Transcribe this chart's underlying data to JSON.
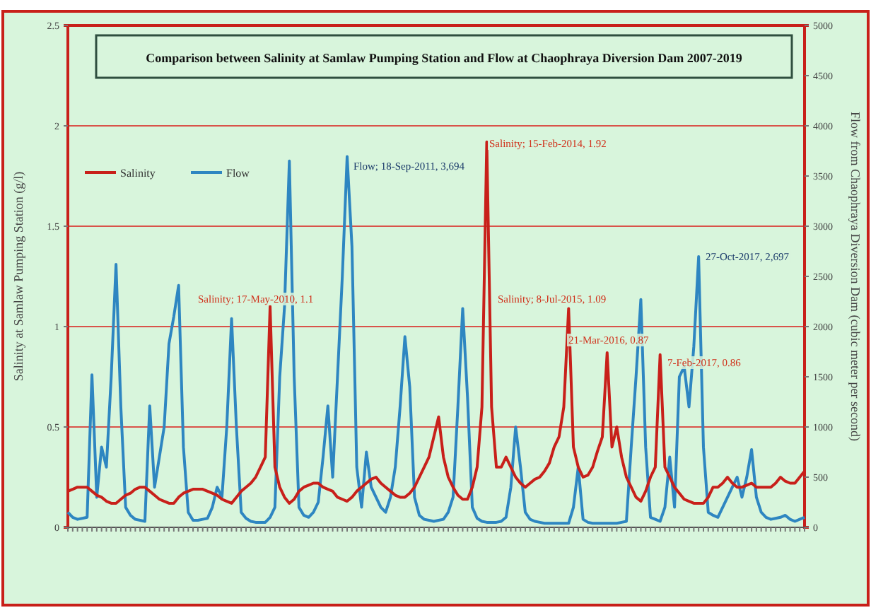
{
  "chart_data": {
    "type": "line",
    "title": "Comparison between Salinity at Samlaw Pumping Station and Flow at Chaophraya Diversion Dam 2007-2019",
    "ylabel": "Salinity at Samlaw Pumping Station (g/l)",
    "y2label": "Flow from Chaophraya Diversion Dam (cubic meter per second)",
    "categories": [
      null,
      null,
      null,
      null,
      null,
      null,
      null,
      null,
      null,
      null,
      null,
      null,
      null,
      null,
      null,
      null,
      null,
      null,
      null,
      null,
      null,
      null,
      null,
      null,
      null,
      null,
      null,
      null,
      null,
      null,
      null,
      null,
      null,
      null,
      null,
      null,
      null,
      null,
      null,
      null,
      null,
      null,
      null,
      null,
      null,
      null,
      null,
      null,
      null,
      null,
      null,
      null,
      null,
      null,
      null,
      null,
      null,
      null,
      null,
      null,
      null,
      null,
      null,
      null,
      null,
      null,
      null,
      null,
      null,
      null,
      null,
      null,
      null,
      null,
      null,
      null,
      null,
      null,
      null,
      null,
      null,
      null,
      null,
      null,
      null,
      null,
      null,
      null,
      null,
      null,
      null,
      null,
      null,
      null,
      null,
      null,
      null,
      null,
      null,
      null,
      null,
      null,
      null,
      null,
      null,
      null,
      null,
      null,
      null,
      null,
      null,
      null,
      null,
      null,
      null,
      null,
      null,
      null,
      null,
      null,
      null,
      null,
      null,
      null,
      null,
      null,
      null,
      null,
      null,
      null,
      null,
      null,
      null,
      null,
      null,
      null,
      null,
      null,
      null,
      null,
      null,
      null,
      null,
      null,
      null,
      null,
      null,
      null,
      null,
      null,
      null,
      null,
      null,
      null
    ],
    "ylim": [
      0,
      2.5
    ],
    "yticks": [
      0,
      0.5,
      1,
      1.5,
      2,
      2.5
    ],
    "y2lim": [
      0,
      5000
    ],
    "y2ticks": [
      0,
      500,
      1000,
      1500,
      2000,
      2500,
      3000,
      3500,
      4000,
      4500,
      5000
    ],
    "tick_labels": "y",
    "grid": "y",
    "legend": "top left",
    "series": [
      {
        "name": "Salinity",
        "color": "#c8201a",
        "values": [
          0.18,
          0.19,
          0.2,
          0.2,
          0.2,
          0.18,
          0.16,
          0.15,
          0.13,
          0.12,
          0.12,
          0.14,
          0.16,
          0.17,
          0.19,
          0.2,
          0.2,
          0.18,
          0.16,
          0.14,
          0.13,
          0.12,
          0.12,
          0.15,
          0.17,
          0.18,
          0.19,
          0.19,
          0.19,
          0.18,
          0.17,
          0.16,
          0.14,
          0.13,
          0.12,
          0.15,
          0.18,
          0.2,
          0.22,
          0.25,
          0.3,
          0.35,
          1.1,
          0.3,
          0.2,
          0.15,
          0.12,
          0.14,
          0.18,
          0.2,
          0.21,
          0.22,
          0.22,
          0.2,
          0.19,
          0.18,
          0.15,
          0.14,
          0.13,
          0.15,
          0.18,
          0.2,
          0.22,
          0.24,
          0.25,
          0.22,
          0.2,
          0.18,
          0.16,
          0.15,
          0.15,
          0.17,
          0.2,
          0.25,
          0.3,
          0.35,
          0.45,
          0.55,
          0.35,
          0.25,
          0.2,
          0.16,
          0.14,
          0.14,
          0.2,
          0.3,
          0.6,
          1.92,
          0.6,
          0.3,
          0.3,
          0.35,
          0.3,
          0.25,
          0.22,
          0.2,
          0.22,
          0.24,
          0.25,
          0.28,
          0.32,
          0.4,
          0.45,
          0.6,
          1.09,
          0.4,
          0.3,
          0.25,
          0.26,
          0.3,
          0.38,
          0.45,
          0.87,
          0.4,
          0.5,
          0.35,
          0.25,
          0.2,
          0.15,
          0.13,
          0.18,
          0.25,
          0.3,
          0.86,
          0.3,
          0.25,
          0.2,
          0.17,
          0.14,
          0.13,
          0.12,
          0.12,
          0.12,
          0.15,
          0.2,
          0.2,
          0.22,
          0.25,
          0.22,
          0.2,
          0.2,
          0.21,
          0.22,
          0.2,
          0.2,
          0.2,
          0.2,
          0.22,
          0.25,
          0.23,
          0.22,
          0.22,
          0.25,
          0.28
        ]
      },
      {
        "name": "Flow",
        "color": "#2e86c1",
        "axis": "y2",
        "values": [
          150,
          100,
          80,
          90,
          100,
          1520,
          300,
          800,
          600,
          1500,
          2620,
          1200,
          200,
          120,
          80,
          70,
          60,
          1210,
          400,
          700,
          1000,
          1830,
          2100,
          2410,
          800,
          150,
          70,
          70,
          80,
          90,
          200,
          400,
          300,
          1000,
          2080,
          1000,
          150,
          90,
          60,
          50,
          50,
          50,
          100,
          200,
          1500,
          2200,
          3650,
          1500,
          200,
          120,
          100,
          150,
          250,
          700,
          1210,
          500,
          1500,
          2500,
          3694,
          2800,
          600,
          200,
          750,
          400,
          300,
          200,
          150,
          300,
          600,
          1200,
          1900,
          1400,
          300,
          120,
          80,
          70,
          60,
          70,
          80,
          150,
          300,
          1200,
          2180,
          1300,
          200,
          90,
          60,
          50,
          50,
          50,
          60,
          100,
          400,
          1000,
          600,
          150,
          80,
          60,
          50,
          40,
          40,
          40,
          40,
          40,
          40,
          200,
          600,
          80,
          50,
          40,
          40,
          40,
          40,
          40,
          40,
          50,
          60,
          800,
          1500,
          2270,
          800,
          100,
          80,
          60,
          200,
          700,
          200,
          1500,
          1600,
          1200,
          1800,
          2697,
          800,
          150,
          120,
          100,
          200,
          300,
          400,
          500,
          300,
          500,
          775,
          300,
          150,
          100,
          80,
          90,
          100,
          120,
          80,
          60,
          80,
          100
        ]
      }
    ],
    "annotations": [
      "Salinity; 17-May-2010, 1.1",
      "Flow; 18-Sep-2011, 3,694",
      "Salinity; 15-Feb-2014, 1.92",
      "Salinity; 8-Jul-2015, 1.09",
      "21-Mar-2016, 0.87",
      "7-Feb-2017, 0.86",
      "27-Oct-2017, 2,697"
    ]
  }
}
